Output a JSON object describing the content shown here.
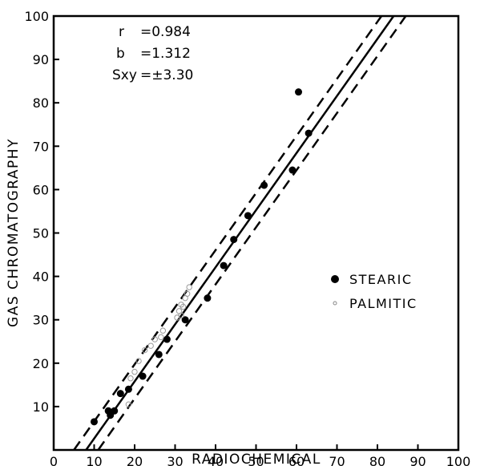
{
  "chart_data": {
    "type": "scatter",
    "title": "",
    "xlabel": "RADIOCHEMICAL",
    "ylabel": "GAS CHROMATOGRAPHY",
    "xlim": [
      0,
      100
    ],
    "ylim": [
      0,
      100
    ],
    "xticks": [
      "0",
      "10",
      "20",
      "30",
      "40",
      "50",
      "60",
      "70",
      "80",
      "90",
      "100"
    ],
    "yticks": [
      "10",
      "20",
      "30",
      "40",
      "50",
      "60",
      "70",
      "80",
      "90",
      "100"
    ],
    "grid": false,
    "statistics": [
      {
        "symbol": "r",
        "text": "=0.984"
      },
      {
        "symbol": "b",
        "text": "=1.312"
      },
      {
        "symbol": "Sxy",
        "text": "=±3.30"
      }
    ],
    "regression_line": {
      "x": [
        8,
        84
      ],
      "y": [
        0,
        100
      ]
    },
    "confidence_bands": [
      {
        "x": [
          5,
          81
        ],
        "y": [
          0,
          100
        ]
      },
      {
        "x": [
          11,
          87
        ],
        "y": [
          0,
          100
        ]
      }
    ],
    "legend": {
      "position": "right",
      "entries": [
        "STEARIC",
        "PALMITIC"
      ]
    },
    "series": [
      {
        "name": "STEARIC",
        "marker": "filled-circle",
        "points": [
          [
            10,
            6.5
          ],
          [
            13.5,
            9
          ],
          [
            14,
            8
          ],
          [
            15,
            9
          ],
          [
            16.5,
            13
          ],
          [
            18.5,
            14
          ],
          [
            22,
            17
          ],
          [
            26,
            22
          ],
          [
            28,
            25.5
          ],
          [
            32.5,
            30
          ],
          [
            38,
            35
          ],
          [
            42,
            42.5
          ],
          [
            44.5,
            48.5
          ],
          [
            48,
            54
          ],
          [
            52,
            61
          ],
          [
            59,
            64.5
          ],
          [
            60.5,
            82.5
          ],
          [
            63,
            73
          ]
        ]
      },
      {
        "name": "PALMITIC",
        "marker": "open-circle",
        "points": [
          [
            18.5,
            10.5
          ],
          [
            19,
            16.5
          ],
          [
            20,
            18
          ],
          [
            21,
            20.5
          ],
          [
            22.5,
            23
          ],
          [
            24,
            24
          ],
          [
            25,
            25.5
          ],
          [
            26.5,
            26
          ],
          [
            27,
            27.5
          ],
          [
            30.5,
            30.5
          ],
          [
            31,
            32
          ],
          [
            31.5,
            33.5
          ],
          [
            32.5,
            35
          ],
          [
            33,
            36
          ],
          [
            33.5,
            37.5
          ],
          [
            32,
            33
          ],
          [
            31.5,
            31
          ]
        ]
      }
    ]
  }
}
